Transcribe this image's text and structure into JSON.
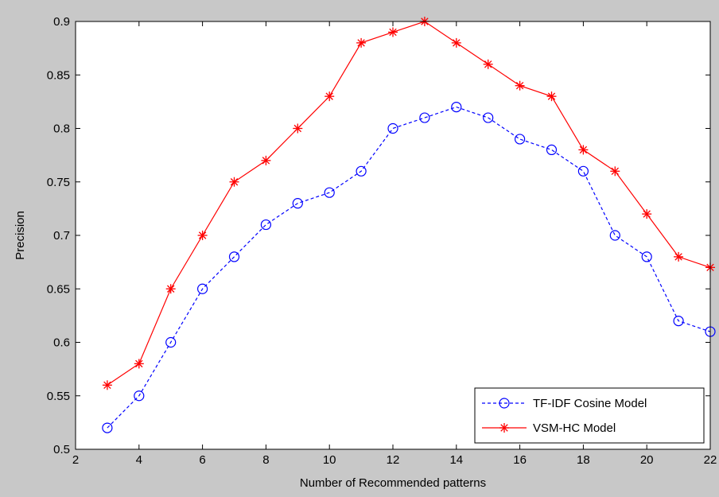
{
  "chart_data": {
    "type": "line",
    "xlabel": "Number of Recommended patterns",
    "ylabel": "Precision",
    "xlim": [
      2,
      22
    ],
    "ylim": [
      0.5,
      0.9
    ],
    "xticks": [
      2,
      4,
      6,
      8,
      10,
      12,
      14,
      16,
      18,
      20,
      22
    ],
    "yticks": [
      0.5,
      0.55,
      0.6,
      0.65,
      0.7,
      0.75,
      0.8,
      0.85,
      0.9
    ],
    "xtick_labels": [
      "2",
      "4",
      "6",
      "8",
      "10",
      "12",
      "14",
      "16",
      "18",
      "20",
      "22"
    ],
    "ytick_labels": [
      "0.5",
      "0.55",
      "0.6",
      "0.65",
      "0.7",
      "0.75",
      "0.8",
      "0.85",
      "0.9"
    ],
    "grid": false,
    "legend_position": "bottom-right",
    "x": [
      3,
      4,
      5,
      6,
      7,
      8,
      9,
      10,
      11,
      12,
      13,
      14,
      15,
      16,
      17,
      18,
      19,
      20,
      21,
      22
    ],
    "series": [
      {
        "name": "TF-IDF Cosine Model",
        "color": "#0000ff",
        "line_style": "dashed",
        "marker": "circle",
        "values": [
          0.52,
          0.55,
          0.6,
          0.65,
          0.68,
          0.71,
          0.73,
          0.74,
          0.76,
          0.8,
          0.81,
          0.82,
          0.81,
          0.79,
          0.78,
          0.76,
          0.7,
          0.68,
          0.62,
          0.61
        ]
      },
      {
        "name": "VSM-HC Model",
        "color": "#ff0000",
        "line_style": "solid",
        "marker": "asterisk",
        "values": [
          0.56,
          0.58,
          0.65,
          0.7,
          0.75,
          0.77,
          0.8,
          0.83,
          0.88,
          0.89,
          0.9,
          0.88,
          0.86,
          0.84,
          0.83,
          0.78,
          0.76,
          0.72,
          0.68,
          0.67
        ]
      }
    ]
  }
}
